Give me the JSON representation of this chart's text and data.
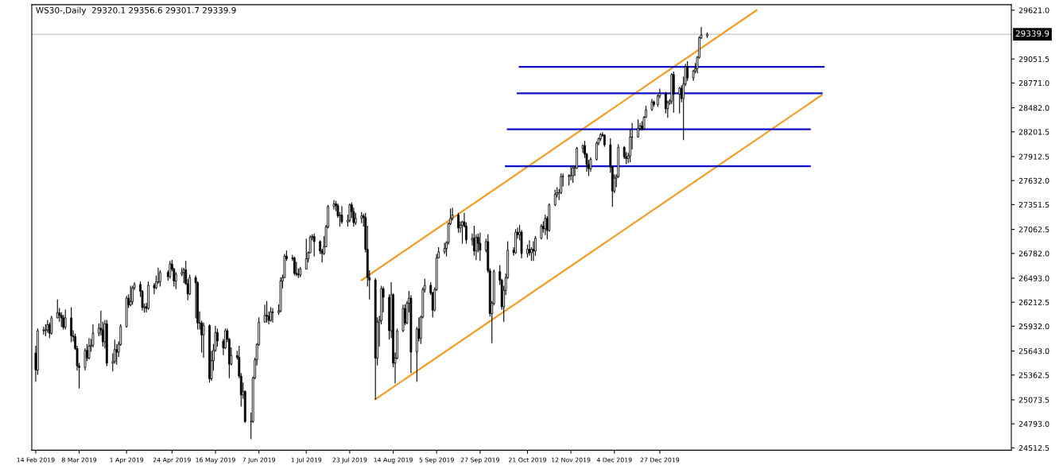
{
  "chart_data": {
    "type": "candlestick",
    "title": "WS30-,Daily  29320.1 29356.6 29301.7 29339.9",
    "x": [
      "2019-02-14",
      "2019-02-15",
      "2019-02-18",
      "2019-02-19",
      "2019-02-20",
      "2019-02-21",
      "2019-02-22",
      "2019-02-25",
      "2019-02-26",
      "2019-02-27",
      "2019-02-28",
      "2019-03-01",
      "2019-03-04",
      "2019-03-05",
      "2019-03-06",
      "2019-03-07",
      "2019-03-08",
      "2019-03-11",
      "2019-03-12",
      "2019-03-13",
      "2019-03-14",
      "2019-03-15",
      "2019-03-18",
      "2019-03-19",
      "2019-03-20",
      "2019-03-21",
      "2019-03-22",
      "2019-03-25",
      "2019-03-26",
      "2019-03-27",
      "2019-03-28",
      "2019-03-29",
      "2019-04-01",
      "2019-04-02",
      "2019-04-03",
      "2019-04-04",
      "2019-04-05",
      "2019-04-08",
      "2019-04-09",
      "2019-04-10",
      "2019-04-11",
      "2019-04-12",
      "2019-04-15",
      "2019-04-16",
      "2019-04-17",
      "2019-04-18",
      "2019-04-22",
      "2019-04-23",
      "2019-04-24",
      "2019-04-25",
      "2019-04-26",
      "2019-04-29",
      "2019-04-30",
      "2019-05-01",
      "2019-05-02",
      "2019-05-03",
      "2019-05-06",
      "2019-05-07",
      "2019-05-08",
      "2019-05-09",
      "2019-05-10",
      "2019-05-13",
      "2019-05-14",
      "2019-05-15",
      "2019-05-16",
      "2019-05-17",
      "2019-05-20",
      "2019-05-21",
      "2019-05-22",
      "2019-05-23",
      "2019-05-24",
      "2019-05-27",
      "2019-05-28",
      "2019-05-29",
      "2019-05-30",
      "2019-05-31",
      "2019-06-03",
      "2019-06-04",
      "2019-06-05",
      "2019-06-06",
      "2019-06-07",
      "2019-06-10",
      "2019-06-11",
      "2019-06-12",
      "2019-06-13",
      "2019-06-14",
      "2019-06-17",
      "2019-06-18",
      "2019-06-19",
      "2019-06-20",
      "2019-06-21",
      "2019-06-24",
      "2019-06-25",
      "2019-06-26",
      "2019-06-27",
      "2019-06-28",
      "2019-07-01",
      "2019-07-02",
      "2019-07-03",
      "2019-07-04",
      "2019-07-05",
      "2019-07-08",
      "2019-07-09",
      "2019-07-10",
      "2019-07-11",
      "2019-07-12",
      "2019-07-15",
      "2019-07-16",
      "2019-07-17",
      "2019-07-18",
      "2019-07-19",
      "2019-07-22",
      "2019-07-23",
      "2019-07-24",
      "2019-07-25",
      "2019-07-26",
      "2019-07-29",
      "2019-07-30",
      "2019-07-31",
      "2019-08-01",
      "2019-08-02",
      "2019-08-05",
      "2019-08-06",
      "2019-08-07",
      "2019-08-08",
      "2019-08-09",
      "2019-08-12",
      "2019-08-13",
      "2019-08-14",
      "2019-08-15",
      "2019-08-16",
      "2019-08-19",
      "2019-08-20",
      "2019-08-21",
      "2019-08-22",
      "2019-08-23",
      "2019-08-26",
      "2019-08-27",
      "2019-08-28",
      "2019-08-29",
      "2019-08-30",
      "2019-09-02",
      "2019-09-03",
      "2019-09-04",
      "2019-09-05",
      "2019-09-06",
      "2019-09-09",
      "2019-09-10",
      "2019-09-11",
      "2019-09-12",
      "2019-09-13",
      "2019-09-16",
      "2019-09-17",
      "2019-09-18",
      "2019-09-19",
      "2019-09-20",
      "2019-09-23",
      "2019-09-24",
      "2019-09-25",
      "2019-09-26",
      "2019-09-27",
      "2019-09-30",
      "2019-10-01",
      "2019-10-02",
      "2019-10-03",
      "2019-10-04",
      "2019-10-07",
      "2019-10-08",
      "2019-10-09",
      "2019-10-10",
      "2019-10-11",
      "2019-10-14",
      "2019-10-15",
      "2019-10-16",
      "2019-10-17",
      "2019-10-18",
      "2019-10-21",
      "2019-10-22",
      "2019-10-23",
      "2019-10-24",
      "2019-10-25",
      "2019-10-28",
      "2019-10-29",
      "2019-10-30",
      "2019-10-31",
      "2019-11-01",
      "2019-11-04",
      "2019-11-05",
      "2019-11-06",
      "2019-11-07",
      "2019-11-08",
      "2019-11-11",
      "2019-11-12",
      "2019-11-13",
      "2019-11-14",
      "2019-11-15",
      "2019-11-18",
      "2019-11-19",
      "2019-11-20",
      "2019-11-21",
      "2019-11-22",
      "2019-11-25",
      "2019-11-26",
      "2019-11-27",
      "2019-11-28",
      "2019-11-29",
      "2019-12-02",
      "2019-12-03",
      "2019-12-04",
      "2019-12-05",
      "2019-12-06",
      "2019-12-09",
      "2019-12-10",
      "2019-12-11",
      "2019-12-12",
      "2019-12-13",
      "2019-12-16",
      "2019-12-17",
      "2019-12-18",
      "2019-12-19",
      "2019-12-20",
      "2019-12-23",
      "2019-12-24",
      "2019-12-26",
      "2019-12-27",
      "2019-12-30",
      "2019-12-31",
      "2020-01-01",
      "2020-01-02",
      "2020-01-03",
      "2020-01-06",
      "2020-01-07",
      "2020-01-08",
      "2020-01-09",
      "2020-01-10",
      "2020-01-13",
      "2020-01-14",
      "2020-01-15",
      "2020-01-16",
      "2020-01-17",
      "2020-01-20"
    ],
    "ohlc": [
      [
        25620,
        25700,
        25290,
        25420
      ],
      [
        25420,
        25900,
        25370,
        25880
      ],
      [
        25880,
        25920,
        25840,
        25890
      ],
      [
        25880,
        25950,
        25820,
        25890
      ],
      [
        25890,
        26000,
        25860,
        25950
      ],
      [
        25950,
        25970,
        25800,
        25850
      ],
      [
        25850,
        26050,
        25840,
        26030
      ],
      [
        26030,
        26240,
        26030,
        26090
      ],
      [
        26090,
        26140,
        25990,
        26060
      ],
      [
        26060,
        26090,
        25930,
        26030
      ],
      [
        26030,
        26060,
        25900,
        25920
      ],
      [
        25920,
        26120,
        25900,
        26030
      ],
      [
        26030,
        26150,
        25750,
        25820
      ],
      [
        25820,
        25880,
        25760,
        25810
      ],
      [
        25810,
        25840,
        25660,
        25670
      ],
      [
        25670,
        25700,
        25420,
        25470
      ],
      [
        25470,
        25500,
        25210,
        25450
      ],
      [
        25450,
        25670,
        25420,
        25650
      ],
      [
        25650,
        25720,
        25530,
        25560
      ],
      [
        25560,
        25790,
        25550,
        25700
      ],
      [
        25700,
        25780,
        25640,
        25710
      ],
      [
        25710,
        25950,
        25690,
        25850
      ],
      [
        25850,
        25960,
        25820,
        25910
      ],
      [
        25910,
        26110,
        25830,
        25890
      ],
      [
        25890,
        25980,
        25700,
        25750
      ],
      [
        25750,
        26000,
        25680,
        25960
      ],
      [
        25960,
        26000,
        25470,
        25500
      ],
      [
        25500,
        25610,
        25410,
        25520
      ],
      [
        25520,
        25770,
        25500,
        25660
      ],
      [
        25660,
        25720,
        25490,
        25630
      ],
      [
        25630,
        25750,
        25580,
        25720
      ],
      [
        25720,
        25950,
        25710,
        25930
      ],
      [
        25930,
        26280,
        25920,
        26260
      ],
      [
        26260,
        26300,
        26150,
        26180
      ],
      [
        26180,
        26400,
        26170,
        26220
      ],
      [
        26220,
        26400,
        26190,
        26380
      ],
      [
        26380,
        26440,
        26360,
        26420
      ],
      [
        26420,
        26450,
        26280,
        26340
      ],
      [
        26340,
        26350,
        26120,
        26150
      ],
      [
        26150,
        26190,
        26100,
        26160
      ],
      [
        26160,
        26200,
        26100,
        26140
      ],
      [
        26140,
        26450,
        26130,
        26410
      ],
      [
        26410,
        26430,
        26310,
        26380
      ],
      [
        26380,
        26520,
        26370,
        26450
      ],
      [
        26450,
        26610,
        26430,
        26450
      ],
      [
        26450,
        26580,
        26400,
        26560
      ],
      [
        26560,
        26580,
        26470,
        26510
      ],
      [
        26510,
        26690,
        26490,
        26660
      ],
      [
        26660,
        26700,
        26580,
        26600
      ],
      [
        26600,
        26610,
        26400,
        26460
      ],
      [
        26460,
        26560,
        26370,
        26540
      ],
      [
        26540,
        26610,
        26520,
        26560
      ],
      [
        26560,
        26610,
        26440,
        26590
      ],
      [
        26590,
        26690,
        26420,
        26430
      ],
      [
        26430,
        26480,
        26240,
        26310
      ],
      [
        26310,
        26530,
        26300,
        26500
      ],
      [
        26500,
        26520,
        26030,
        26440
      ],
      [
        26440,
        26450,
        25900,
        25970
      ],
      [
        25970,
        26100,
        25900,
        25970
      ],
      [
        25970,
        25990,
        25630,
        25830
      ],
      [
        25830,
        25970,
        25570,
        25940
      ],
      [
        25940,
        25950,
        25280,
        25320
      ],
      [
        25320,
        25640,
        25300,
        25530
      ],
      [
        25530,
        25720,
        25420,
        25650
      ],
      [
        25650,
        25930,
        25640,
        25860
      ],
      [
        25860,
        25900,
        25700,
        25760
      ],
      [
        25760,
        25780,
        25600,
        25680
      ],
      [
        25680,
        25900,
        25670,
        25880
      ],
      [
        25880,
        25900,
        25750,
        25780
      ],
      [
        25780,
        25790,
        25330,
        25490
      ],
      [
        25490,
        25680,
        25480,
        25590
      ],
      [
        25590,
        25640,
        25550,
        25570
      ],
      [
        25570,
        25700,
        25330,
        25350
      ],
      [
        25350,
        25380,
        25000,
        25130
      ],
      [
        25130,
        25270,
        25090,
        25170
      ],
      [
        25170,
        25180,
        24810,
        24820
      ],
      [
        24820,
        24920,
        24620,
        24820
      ],
      [
        24820,
        25340,
        24810,
        25330
      ],
      [
        25330,
        25560,
        25320,
        25540
      ],
      [
        25540,
        25730,
        25480,
        25720
      ],
      [
        25720,
        26030,
        25710,
        25980
      ],
      [
        25980,
        26180,
        25980,
        26060
      ],
      [
        26060,
        26220,
        25980,
        26050
      ],
      [
        26050,
        26100,
        25960,
        26000
      ],
      [
        26000,
        26150,
        25990,
        26100
      ],
      [
        26100,
        26140,
        25980,
        26090
      ],
      [
        26090,
        26180,
        26070,
        26110
      ],
      [
        26110,
        26500,
        26100,
        26460
      ],
      [
        26460,
        26530,
        26380,
        26500
      ],
      [
        26500,
        26770,
        26500,
        26750
      ],
      [
        26750,
        26810,
        26700,
        26720
      ],
      [
        26720,
        26760,
        26700,
        26730
      ],
      [
        26730,
        26740,
        26530,
        26550
      ],
      [
        26550,
        26680,
        26520,
        26540
      ],
      [
        26540,
        26600,
        26500,
        26530
      ],
      [
        26530,
        26620,
        26510,
        26600
      ],
      [
        26600,
        26950,
        26600,
        26720
      ],
      [
        26720,
        26800,
        26680,
        26790
      ],
      [
        26790,
        26990,
        26790,
        26970
      ],
      [
        26970,
        27000,
        26940,
        26980
      ],
      [
        26980,
        27010,
        26750,
        26920
      ],
      [
        26920,
        26930,
        26780,
        26810
      ],
      [
        26810,
        26830,
        26680,
        26780
      ],
      [
        26780,
        26980,
        26770,
        26860
      ],
      [
        26860,
        27110,
        26860,
        27090
      ],
      [
        27090,
        27340,
        27080,
        27330
      ],
      [
        27330,
        27400,
        27300,
        27360
      ],
      [
        27360,
        27390,
        27280,
        27340
      ],
      [
        27340,
        27360,
        27200,
        27220
      ],
      [
        27220,
        27260,
        27100,
        27230
      ],
      [
        27230,
        27330,
        27130,
        27150
      ],
      [
        27150,
        27230,
        27100,
        27170
      ],
      [
        27170,
        27360,
        27150,
        27350
      ],
      [
        27350,
        27370,
        27200,
        27270
      ],
      [
        27270,
        27310,
        27100,
        27140
      ],
      [
        27140,
        27250,
        27120,
        27190
      ],
      [
        27190,
        27260,
        27140,
        27220
      ],
      [
        27220,
        27240,
        27100,
        27200
      ],
      [
        27200,
        27250,
        26800,
        26830
      ],
      [
        26830,
        27100,
        26400,
        26500
      ],
      [
        26500,
        26580,
        26250,
        26470
      ],
      [
        26470,
        26490,
        25080,
        25560
      ],
      [
        25560,
        26030,
        25480,
        25980
      ],
      [
        25980,
        26050,
        25700,
        26000
      ],
      [
        26000,
        26400,
        25960,
        26370
      ],
      [
        26370,
        26390,
        26100,
        26270
      ],
      [
        26270,
        26300,
        25780,
        25880
      ],
      [
        25880,
        26440,
        25800,
        26300
      ],
      [
        26300,
        26310,
        25460,
        25500
      ],
      [
        25500,
        25620,
        25270,
        25560
      ],
      [
        25560,
        25900,
        25550,
        25880
      ],
      [
        25880,
        26180,
        25870,
        26140
      ],
      [
        26140,
        26180,
        25950,
        25970
      ],
      [
        25970,
        26220,
        25960,
        26200
      ],
      [
        26200,
        26340,
        26100,
        26260
      ],
      [
        26260,
        26290,
        25390,
        25630
      ],
      [
        25630,
        25920,
        25290,
        25900
      ],
      [
        25900,
        26030,
        25760,
        25790
      ],
      [
        25790,
        26050,
        25730,
        26040
      ],
      [
        26040,
        26380,
        26030,
        26360
      ],
      [
        26360,
        26480,
        26330,
        26410
      ],
      [
        26410,
        26440,
        26300,
        26320
      ],
      [
        26320,
        26330,
        26040,
        26120
      ],
      [
        26120,
        26380,
        26110,
        26360
      ],
      [
        26360,
        26770,
        26350,
        26730
      ],
      [
        26730,
        26850,
        26730,
        26800
      ],
      [
        26800,
        26900,
        26780,
        26840
      ],
      [
        26840,
        26920,
        26750,
        26910
      ],
      [
        26910,
        27140,
        26890,
        27130
      ],
      [
        27130,
        27300,
        27120,
        27190
      ],
      [
        27190,
        27310,
        27170,
        27230
      ],
      [
        27230,
        27250,
        27030,
        27080
      ],
      [
        27080,
        27150,
        27030,
        27110
      ],
      [
        27110,
        27160,
        26900,
        27150
      ],
      [
        27150,
        27250,
        27090,
        27100
      ],
      [
        27100,
        27140,
        26900,
        26940
      ],
      [
        26940,
        27010,
        26880,
        26960
      ],
      [
        26960,
        27100,
        26760,
        26810
      ],
      [
        26810,
        27000,
        26710,
        26970
      ],
      [
        26970,
        27010,
        26800,
        26900
      ],
      [
        26900,
        27020,
        26700,
        26820
      ],
      [
        26820,
        26950,
        26800,
        26920
      ],
      [
        26920,
        27000,
        26560,
        26580
      ],
      [
        26580,
        26600,
        26050,
        26080
      ],
      [
        26080,
        26220,
        25740,
        26200
      ],
      [
        26200,
        26590,
        26180,
        26570
      ],
      [
        26570,
        26640,
        26420,
        26470
      ],
      [
        26470,
        26480,
        26130,
        26160
      ],
      [
        26160,
        26400,
        25990,
        26350
      ],
      [
        26350,
        26540,
        26300,
        26500
      ],
      [
        26500,
        26920,
        26490,
        26820
      ],
      [
        26820,
        26850,
        26760,
        26790
      ],
      [
        26790,
        27060,
        26780,
        27030
      ],
      [
        27030,
        27080,
        26960,
        27000
      ],
      [
        27000,
        27110,
        26940,
        27030
      ],
      [
        27030,
        27050,
        26730,
        26780
      ],
      [
        26780,
        26880,
        26740,
        26830
      ],
      [
        26830,
        26930,
        26760,
        26790
      ],
      [
        26790,
        26850,
        26700,
        26830
      ],
      [
        26830,
        26920,
        26700,
        26810
      ],
      [
        26810,
        26980,
        26760,
        26960
      ],
      [
        26960,
        27120,
        26950,
        27100
      ],
      [
        27100,
        27150,
        27030,
        27070
      ],
      [
        27070,
        27230,
        27000,
        27190
      ],
      [
        27190,
        27210,
        26950,
        27050
      ],
      [
        27050,
        27360,
        27040,
        27350
      ],
      [
        27350,
        27520,
        27340,
        27470
      ],
      [
        27470,
        27550,
        27440,
        27490
      ],
      [
        27490,
        27530,
        27410,
        27490
      ],
      [
        27490,
        27710,
        27480,
        27680
      ],
      [
        27680,
        27710,
        27570,
        27680
      ],
      [
        27680,
        27700,
        27580,
        27690
      ],
      [
        27690,
        27800,
        27640,
        27690
      ],
      [
        27690,
        27800,
        27610,
        27780
      ],
      [
        27780,
        27800,
        27690,
        27780
      ],
      [
        27780,
        28020,
        27770,
        28010
      ],
      [
        28010,
        28050,
        27960,
        28040
      ],
      [
        28040,
        28090,
        27900,
        27940
      ],
      [
        27940,
        27950,
        27740,
        27820
      ],
      [
        27820,
        27870,
        27690,
        27770
      ],
      [
        27770,
        27900,
        27740,
        27880
      ],
      [
        27880,
        28080,
        27870,
        28070
      ],
      [
        28070,
        28130,
        28050,
        28120
      ],
      [
        28120,
        28180,
        28100,
        28170
      ],
      [
        28170,
        28190,
        28150,
        28160
      ],
      [
        28160,
        28170,
        28030,
        28050
      ],
      [
        28050,
        28120,
        27730,
        27790
      ],
      [
        27790,
        27800,
        27330,
        27510
      ],
      [
        27510,
        27700,
        27490,
        27660
      ],
      [
        27660,
        27700,
        27560,
        27680
      ],
      [
        27680,
        28050,
        27670,
        28020
      ],
      [
        28020,
        28030,
        27890,
        27910
      ],
      [
        27910,
        27960,
        27830,
        27890
      ],
      [
        27890,
        27950,
        27840,
        27920
      ],
      [
        27920,
        28230,
        27850,
        28140
      ],
      [
        28140,
        28300,
        28000,
        28140
      ],
      [
        28140,
        28340,
        28140,
        28240
      ],
      [
        28240,
        28300,
        28220,
        28270
      ],
      [
        28270,
        28320,
        28220,
        28240
      ],
      [
        28240,
        28380,
        28230,
        28370
      ],
      [
        28370,
        28500,
        28370,
        28460
      ],
      [
        28460,
        28580,
        28450,
        28550
      ],
      [
        28550,
        28560,
        28500,
        28520
      ],
      [
        28520,
        28630,
        28500,
        28620
      ],
      [
        28620,
        28700,
        28600,
        28650
      ],
      [
        28650,
        28660,
        28420,
        28470
      ],
      [
        28470,
        28560,
        28370,
        28540
      ],
      [
        28540,
        28580,
        28520,
        28560
      ],
      [
        28560,
        28880,
        28530,
        28870
      ],
      [
        28870,
        28900,
        28430,
        28640
      ],
      [
        28640,
        28720,
        28420,
        28710
      ],
      [
        28710,
        28740,
        28550,
        28590
      ],
      [
        28590,
        28840,
        28110,
        28760
      ],
      [
        28760,
        28990,
        28740,
        28960
      ],
      [
        28960,
        29020,
        28800,
        28830
      ],
      [
        28830,
        28920,
        28800,
        28910
      ],
      [
        28910,
        29000,
        28890,
        28940
      ],
      [
        28940,
        29080,
        28890,
        29070
      ],
      [
        29070,
        29310,
        29060,
        29300
      ],
      [
        29300,
        29420,
        29290,
        29330
      ],
      [
        29320.1,
        29356.6,
        29301.7,
        29339.9
      ]
    ],
    "series": [
      {
        "type": "line",
        "color": "#f39c26",
        "x": [
          "2019-07-29",
          "2020-02-14"
        ],
        "values": [
          26470,
          29620
        ]
      },
      {
        "type": "line",
        "color": "#f39c26",
        "x": [
          "2019-08-05",
          "2020-03-18"
        ],
        "values": [
          25080,
          28630
        ]
      },
      {
        "type": "line",
        "color": "#1111cc",
        "x": [
          "2019-10-17",
          "2020-03-19"
        ],
        "values": [
          28960,
          28960
        ]
      },
      {
        "type": "line",
        "color": "#1111cc",
        "x": [
          "2019-10-16",
          "2020-03-18"
        ],
        "values": [
          28650,
          28650
        ]
      },
      {
        "type": "line",
        "color": "#1111cc",
        "x": [
          "2019-10-11",
          "2020-03-12"
        ],
        "values": [
          28230,
          28230
        ]
      },
      {
        "type": "line",
        "color": "#1111cc",
        "x": [
          "2019-10-10",
          "2020-03-12"
        ],
        "values": [
          27800,
          27800
        ]
      }
    ],
    "ref_lines": [
      {
        "axis": "y",
        "value": 29339.9,
        "label": "29339.9",
        "color": "#c0c0c0"
      }
    ],
    "xlim": [
      "2019-02-12",
      "2020-06-22"
    ],
    "xticks": [
      {
        "value": "2019-02-14",
        "label": "14 Feb 2019"
      },
      {
        "value": "2019-03-08",
        "label": "8 Mar 2019"
      },
      {
        "value": "2019-04-01",
        "label": "1 Apr 2019"
      },
      {
        "value": "2019-04-24",
        "label": "24 Apr 2019"
      },
      {
        "value": "2019-05-16",
        "label": "16 May 2019"
      },
      {
        "value": "2019-06-07",
        "label": "7 Jun 2019"
      },
      {
        "value": "2019-07-01",
        "label": "1 Jul 2019"
      },
      {
        "value": "2019-07-23",
        "label": "23 Jul 2019"
      },
      {
        "value": "2019-08-14",
        "label": "14 Aug 2019"
      },
      {
        "value": "2019-09-05",
        "label": "5 Sep 2019"
      },
      {
        "value": "2019-09-27",
        "label": "27 Sep 2019"
      },
      {
        "value": "2019-10-21",
        "label": "21 Oct 2019"
      },
      {
        "value": "2019-11-12",
        "label": "12 Nov 2019"
      },
      {
        "value": "2019-12-04",
        "label": "4 Dec 2019"
      },
      {
        "value": "2019-12-27",
        "label": "27 Dec 2019"
      }
    ],
    "ylim": [
      24485,
      29685
    ],
    "yticks": [
      {
        "value": 24512.5,
        "label": "24512.5"
      },
      {
        "value": 24793,
        "label": "24793.0"
      },
      {
        "value": 25073.5,
        "label": "25073.5"
      },
      {
        "value": 25362.5,
        "label": "25362.5"
      },
      {
        "value": 25643,
        "label": "25643.0"
      },
      {
        "value": 25932,
        "label": "25932.0"
      },
      {
        "value": 26212.5,
        "label": "26212.5"
      },
      {
        "value": 26493,
        "label": "26493.0"
      },
      {
        "value": 26782,
        "label": "26782.0"
      },
      {
        "value": 27062.5,
        "label": "27062.5"
      },
      {
        "value": 27351.5,
        "label": "27351.5"
      },
      {
        "value": 27632,
        "label": "27632.0"
      },
      {
        "value": 27912.5,
        "label": "27912.5"
      },
      {
        "value": 28201.5,
        "label": "28201.5"
      },
      {
        "value": 28482,
        "label": "28482.0"
      },
      {
        "value": 28771,
        "label": "28771.0"
      },
      {
        "value": 29051.5,
        "label": "29051.5"
      },
      {
        "value": 29621,
        "label": "29621.0"
      }
    ]
  }
}
